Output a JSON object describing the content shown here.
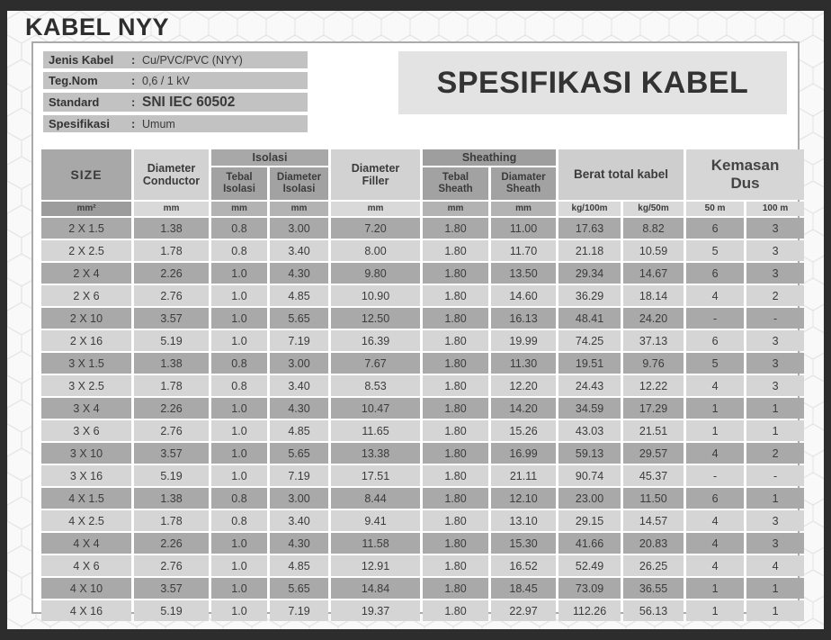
{
  "page_title": "KABEL NYY",
  "banner_title": "SPESIFIKASI KABEL",
  "colors": {
    "frame": "#2d2d2d",
    "panel_border": "#aaaaaa",
    "row_dark": "#a9a9a9",
    "row_light": "#d5d5d5",
    "banner_bg": "#e3e3e3",
    "info_bar_bg": "#c2c2c2"
  },
  "info": {
    "rows": [
      {
        "label": "Jenis Kabel",
        "sep": ":",
        "value": "Cu/PVC/PVC (NYY)"
      },
      {
        "label": "Teg.Nom",
        "sep": ":",
        "value": "0,6 / 1 kV"
      },
      {
        "label": "Standard",
        "sep": ":",
        "value": "SNI IEC 60502"
      },
      {
        "label": "Spesifikasi",
        "sep": ":",
        "value": "Umum"
      }
    ]
  },
  "table": {
    "headers": {
      "size": "SIZE",
      "diameter_conductor": "Diameter\nConductor",
      "isolasi_group": "Isolasi",
      "tebal_isolasi": "Tebal\nIsolasi",
      "diameter_isolasi": "Diameter\nIsolasi",
      "diameter_filler": "Diameter\nFiller",
      "sheathing_group": "Sheathing",
      "tebal_sheath": "Tebal\nSheath",
      "diamater_sheath": "Diamater\nSheath",
      "berat_total": "Berat total kabel",
      "kemasan_dus": "Kemasan\nDus"
    },
    "units": [
      "mm²",
      "mm",
      "mm",
      "mm",
      "mm",
      "mm",
      "mm",
      "kg/100m",
      "kg/50m",
      "50 m",
      "100 m"
    ],
    "rows": [
      [
        "2 X 1.5",
        "1.38",
        "0.8",
        "3.00",
        "7.20",
        "1.80",
        "11.00",
        "17.63",
        "8.82",
        "6",
        "3"
      ],
      [
        "2 X 2.5",
        "1.78",
        "0.8",
        "3.40",
        "8.00",
        "1.80",
        "11.70",
        "21.18",
        "10.59",
        "5",
        "3"
      ],
      [
        "2 X 4",
        "2.26",
        "1.0",
        "4.30",
        "9.80",
        "1.80",
        "13.50",
        "29.34",
        "14.67",
        "6",
        "3"
      ],
      [
        "2 X 6",
        "2.76",
        "1.0",
        "4.85",
        "10.90",
        "1.80",
        "14.60",
        "36.29",
        "18.14",
        "4",
        "2"
      ],
      [
        "2 X 10",
        "3.57",
        "1.0",
        "5.65",
        "12.50",
        "1.80",
        "16.13",
        "48.41",
        "24.20",
        "-",
        "-"
      ],
      [
        "2 X 16",
        "5.19",
        "1.0",
        "7.19",
        "16.39",
        "1.80",
        "19.99",
        "74.25",
        "37.13",
        "6",
        "3"
      ],
      [
        "3 X 1.5",
        "1.38",
        "0.8",
        "3.00",
        "7.67",
        "1.80",
        "11.30",
        "19.51",
        "9.76",
        "5",
        "3"
      ],
      [
        "3 X 2.5",
        "1.78",
        "0.8",
        "3.40",
        "8.53",
        "1.80",
        "12.20",
        "24.43",
        "12.22",
        "4",
        "3"
      ],
      [
        "3 X 4",
        "2.26",
        "1.0",
        "4.30",
        "10.47",
        "1.80",
        "14.20",
        "34.59",
        "17.29",
        "1",
        "1"
      ],
      [
        "3 X 6",
        "2.76",
        "1.0",
        "4.85",
        "11.65",
        "1.80",
        "15.26",
        "43.03",
        "21.51",
        "1",
        "1"
      ],
      [
        "3 X 10",
        "3.57",
        "1.0",
        "5.65",
        "13.38",
        "1.80",
        "16.99",
        "59.13",
        "29.57",
        "4",
        "2"
      ],
      [
        "3 X 16",
        "5.19",
        "1.0",
        "7.19",
        "17.51",
        "1.80",
        "21.11",
        "90.74",
        "45.37",
        "-",
        "-"
      ],
      [
        "4 X 1.5",
        "1.38",
        "0.8",
        "3.00",
        "8.44",
        "1.80",
        "12.10",
        "23.00",
        "11.50",
        "6",
        "1"
      ],
      [
        "4 X 2.5",
        "1.78",
        "0.8",
        "3.40",
        "9.41",
        "1.80",
        "13.10",
        "29.15",
        "14.57",
        "4",
        "3"
      ],
      [
        "4 X 4",
        "2.26",
        "1.0",
        "4.30",
        "11.58",
        "1.80",
        "15.30",
        "41.66",
        "20.83",
        "4",
        "3"
      ],
      [
        "4 X 6",
        "2.76",
        "1.0",
        "4.85",
        "12.91",
        "1.80",
        "16.52",
        "52.49",
        "26.25",
        "4",
        "4"
      ],
      [
        "4 X 10",
        "3.57",
        "1.0",
        "5.65",
        "14.84",
        "1.80",
        "18.45",
        "73.09",
        "36.55",
        "1",
        "1"
      ],
      [
        "4 X 16",
        "5.19",
        "1.0",
        "7.19",
        "19.37",
        "1.80",
        "22.97",
        "112.26",
        "56.13",
        "1",
        "1"
      ]
    ]
  }
}
